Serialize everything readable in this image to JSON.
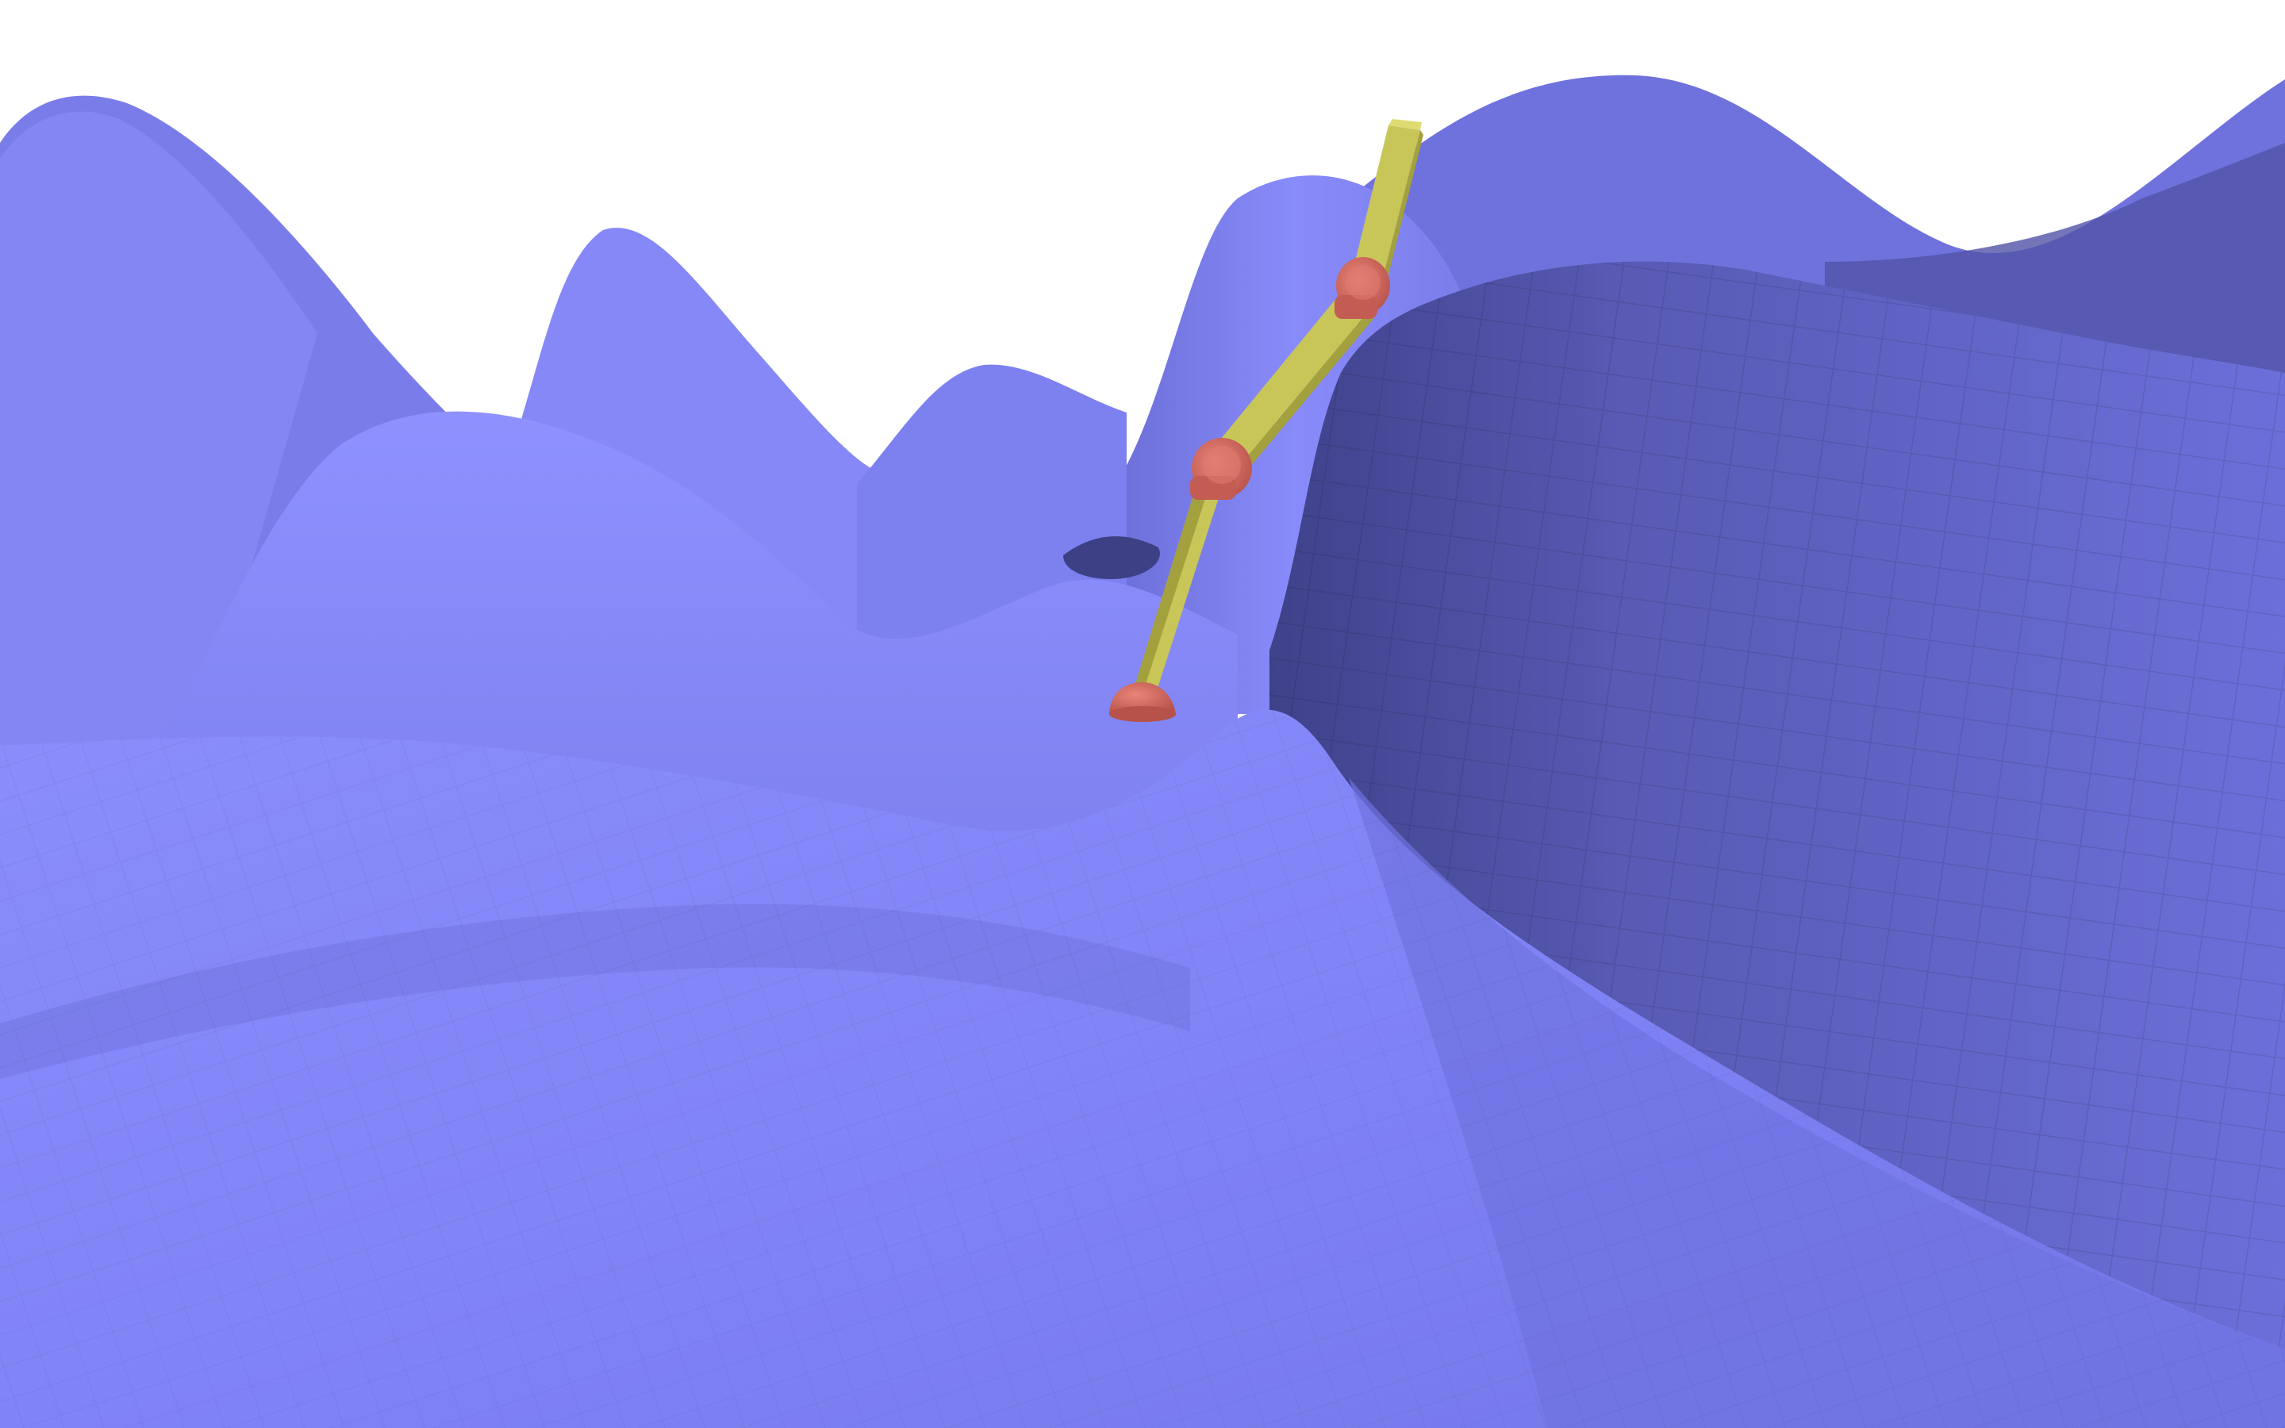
{
  "scene": {
    "background_color": "#ffffff",
    "terrain": {
      "color": "#7f82f5",
      "shade_dark": "#4a4c9a",
      "shade_mid": "#6466c8",
      "shade_light": "#8c8ff8",
      "highlight": "#9599ff",
      "faceted": true
    },
    "robot": {
      "link_color": "#c9c659",
      "link_shade": "#a3a03e",
      "joint_color": "#d9675c",
      "joint_shade": "#b04d44",
      "link_count": 3,
      "joint_count": 3
    }
  }
}
